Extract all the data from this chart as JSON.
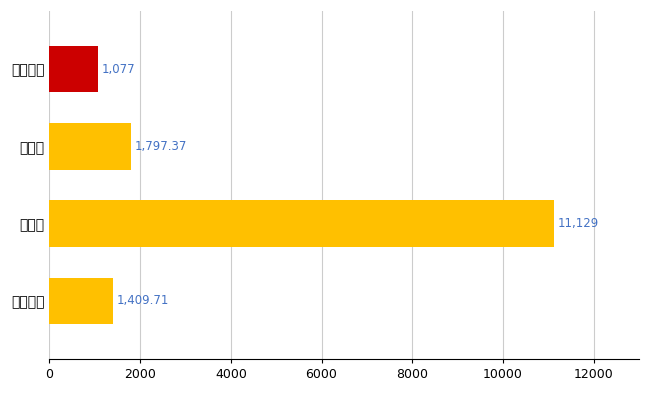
{
  "categories": [
    "かほく市",
    "県平均",
    "県最大",
    "全国平均"
  ],
  "values": [
    1077,
    1797.37,
    11129,
    1409.71
  ],
  "bar_colors": [
    "#cc0000",
    "#ffc000",
    "#ffc000",
    "#ffc000"
  ],
  "value_labels": [
    "1,077",
    "1,797.37",
    "11,129",
    "1,409.71"
  ],
  "value_label_color": "#4472c4",
  "xlim": [
    0,
    13000
  ],
  "xticks": [
    0,
    2000,
    4000,
    6000,
    8000,
    10000,
    12000
  ],
  "xtick_labels": [
    "0",
    "2000",
    "4000",
    "6000",
    "8000",
    "10000",
    "12000"
  ],
  "grid_color": "#cccccc",
  "background_color": "#ffffff",
  "bar_height": 0.6,
  "label_fontsize": 10,
  "tick_fontsize": 9,
  "value_fontsize": 8.5
}
